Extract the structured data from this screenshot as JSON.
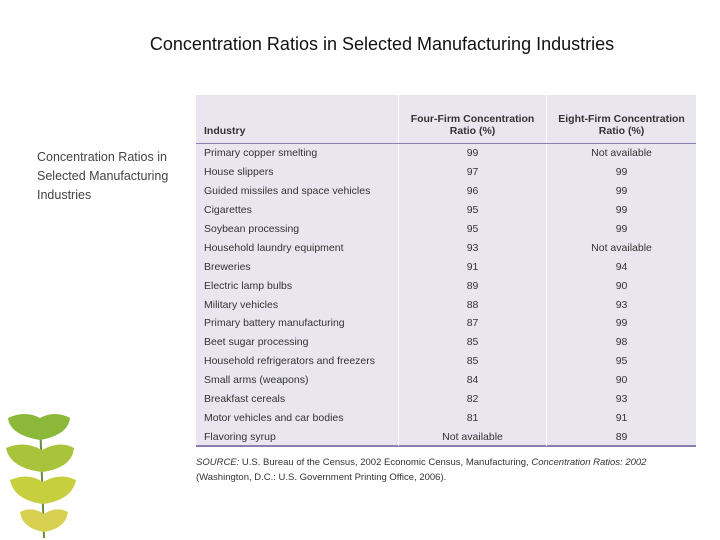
{
  "slide": {
    "title": "Concentration Ratios in Selected Manufacturing Industries",
    "side_text": "Concentration Ratios in Selected Manufacturing Industries",
    "table": {
      "headers": [
        "Industry",
        "Four-Firm Concentration Ratio (%)",
        "Eight-Firm Concentration Ratio (%)"
      ],
      "rows": [
        [
          "Primary copper smelting",
          "99",
          "Not available"
        ],
        [
          "House slippers",
          "97",
          "99"
        ],
        [
          "Guided missiles and space vehicles",
          "96",
          "99"
        ],
        [
          "Cigarettes",
          "95",
          "99"
        ],
        [
          "Soybean processing",
          "95",
          "99"
        ],
        [
          "Household laundry equipment",
          "93",
          "Not available"
        ],
        [
          "Breweries",
          "91",
          "94"
        ],
        [
          "Electric lamp bulbs",
          "89",
          "90"
        ],
        [
          "Military vehicles",
          "88",
          "93"
        ],
        [
          "Primary battery manufacturing",
          "87",
          "99"
        ],
        [
          "Beet sugar processing",
          "85",
          "98"
        ],
        [
          "Household refrigerators and freezers",
          "85",
          "95"
        ],
        [
          "Small arms (weapons)",
          "84",
          "90"
        ],
        [
          "Breakfast cereals",
          "82",
          "93"
        ],
        [
          "Motor vehicles and car bodies",
          "81",
          "91"
        ],
        [
          "Flavoring syrup",
          "Not available",
          "89"
        ]
      ]
    },
    "source": [
      "SOURCE:",
      " U.S. Bureau of the Census, 2002 Economic Census, Manufacturing, ",
      "Concentration Ratios: 2002",
      " (Washington, D.C.: U.S. Government Printing Office, 2006)."
    ]
  }
}
